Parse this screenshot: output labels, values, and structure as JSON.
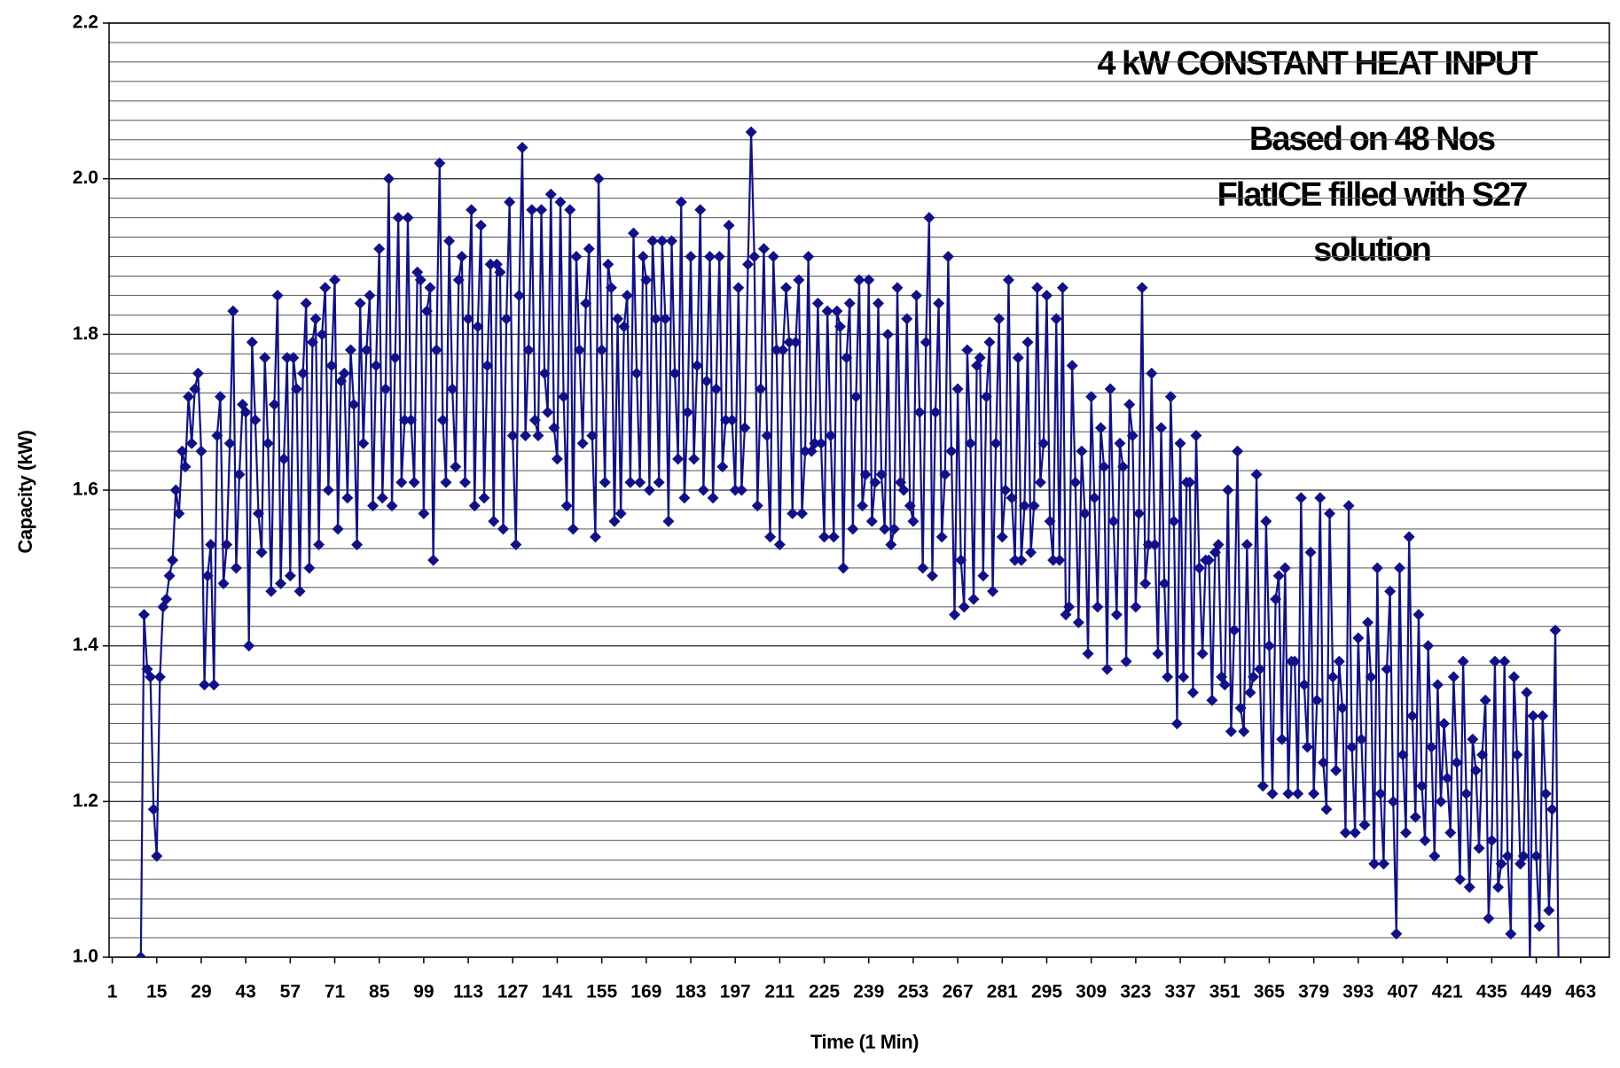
{
  "chart_data": {
    "type": "line",
    "annotations": [
      "4 kW CONSTANT HEAT INPUT",
      "Based on 48 Nos",
      "FlatICE filled with S27",
      "solution"
    ],
    "x_label": "Time (1 Min)",
    "y_label": "Capacity (kW)",
    "xlim": [
      0,
      472
    ],
    "xticks": [
      1,
      15,
      29,
      43,
      57,
      71,
      85,
      99,
      113,
      127,
      141,
      155,
      169,
      183,
      197,
      211,
      225,
      239,
      253,
      267,
      281,
      295,
      309,
      323,
      337,
      351,
      365,
      379,
      393,
      407,
      421,
      435,
      449,
      463
    ],
    "ylim": [
      1,
      2.2
    ],
    "yticks": [
      {
        "value": 1,
        "label": "1.0"
      },
      1.2,
      1.4,
      1.6,
      1.8,
      {
        "value": 2,
        "label": "2.0"
      },
      2.2
    ],
    "y_minor_ticks": [
      1.025,
      1.05,
      1.075,
      1.1,
      1.125,
      1.15,
      1.175,
      1.225,
      1.25,
      1.275,
      1.3,
      1.325,
      1.35,
      1.375,
      1.425,
      1.45,
      1.475,
      1.5,
      1.525,
      1.55,
      1.575,
      1.625,
      1.65,
      1.675,
      1.7,
      1.725,
      1.75,
      1.775,
      1.825,
      1.85,
      1.875,
      1.9,
      1.925,
      1.95,
      1.975,
      2.025,
      2.05,
      2.075,
      2.1,
      2.125,
      2.15,
      2.175
    ],
    "grid": true,
    "series": [
      {
        "color": "#10108a",
        "x": [
          10,
          11,
          12,
          13,
          14,
          15,
          16,
          17,
          18,
          19,
          20,
          21,
          22,
          23,
          24,
          25,
          26,
          27,
          28,
          29,
          30,
          31,
          32,
          33,
          34,
          35,
          36,
          37,
          38,
          39,
          40,
          41,
          42,
          43,
          44,
          45,
          46,
          47,
          48,
          49,
          50,
          51,
          52,
          53,
          54,
          55,
          56,
          57,
          58,
          59,
          60,
          61,
          62,
          63,
          64,
          65,
          66,
          67,
          68,
          69,
          70,
          71,
          72,
          73,
          74,
          75,
          76,
          77,
          78,
          79,
          80,
          81,
          82,
          83,
          84,
          85,
          86,
          87,
          88,
          89,
          90,
          91,
          92,
          93,
          94,
          95,
          96,
          97,
          98,
          99,
          100,
          101,
          102,
          103,
          104,
          105,
          106,
          107,
          108,
          109,
          110,
          111,
          112,
          113,
          114,
          115,
          116,
          117,
          118,
          119,
          120,
          121,
          122,
          123,
          124,
          125,
          126,
          127,
          128,
          129,
          130,
          131,
          132,
          133,
          134,
          135,
          136,
          137,
          138,
          139,
          140,
          141,
          142,
          143,
          144,
          145,
          146,
          147,
          148,
          149,
          150,
          151,
          152,
          153,
          154,
          155,
          156,
          157,
          158,
          159,
          160,
          161,
          162,
          163,
          164,
          165,
          166,
          167,
          168,
          169,
          170,
          171,
          172,
          173,
          174,
          175,
          176,
          177,
          178,
          179,
          180,
          181,
          182,
          183,
          184,
          185,
          186,
          187,
          188,
          189,
          190,
          191,
          192,
          193,
          194,
          195,
          196,
          197,
          198,
          199,
          200,
          201,
          202,
          203,
          204,
          205,
          206,
          207,
          208,
          209,
          210,
          211,
          212,
          213,
          214,
          215,
          216,
          217,
          218,
          219,
          220,
          221,
          222,
          223,
          224,
          225,
          226,
          227,
          228,
          229,
          230,
          231,
          232,
          233,
          234,
          235,
          236,
          237,
          238,
          239,
          240,
          241,
          242,
          243,
          244,
          245,
          246,
          247,
          248,
          249,
          250,
          251,
          252,
          253,
          254,
          255,
          256,
          257,
          258,
          259,
          260,
          261,
          262,
          263,
          264,
          265,
          266,
          267,
          268,
          269,
          270,
          271,
          272,
          273,
          274,
          275,
          276,
          277,
          278,
          279,
          280,
          281,
          282,
          283,
          284,
          285,
          286,
          287,
          288,
          289,
          290,
          291,
          292,
          293,
          294,
          295,
          296,
          297,
          298,
          299,
          300,
          301,
          302,
          303,
          304,
          305,
          306,
          307,
          308,
          309,
          310,
          311,
          312,
          313,
          314,
          315,
          316,
          317,
          318,
          319,
          320,
          321,
          322,
          323,
          324,
          325,
          326,
          327,
          328,
          329,
          330,
          331,
          332,
          333,
          334,
          335,
          336,
          337,
          338,
          339,
          340,
          341,
          342,
          343,
          344,
          345,
          346,
          347,
          348,
          349,
          350,
          351,
          352,
          353,
          354,
          355,
          356,
          357,
          358,
          359,
          360,
          361,
          362,
          363,
          364,
          365,
          366,
          367,
          368,
          369,
          370,
          371,
          372,
          373,
          374,
          375,
          376,
          377,
          378,
          379,
          380,
          381,
          382,
          383,
          384,
          385,
          386,
          387,
          388,
          389,
          390,
          391,
          392,
          393,
          394,
          395,
          396,
          397,
          398,
          399,
          400,
          401,
          402,
          403,
          404,
          405,
          406,
          407,
          408,
          409,
          410,
          411,
          412,
          413,
          414,
          415,
          416,
          417,
          418,
          419,
          420,
          421,
          422,
          423,
          424,
          425,
          426,
          427,
          428,
          429,
          430,
          431,
          432,
          433,
          434,
          435,
          436,
          437,
          438,
          439,
          440,
          441,
          442,
          443,
          444,
          445,
          446,
          447,
          448,
          449,
          450,
          451,
          452,
          453,
          454,
          455,
          456
        ],
        "values": [
          1.0,
          1.44,
          1.37,
          1.36,
          1.19,
          1.13,
          1.36,
          1.45,
          1.46,
          1.49,
          1.51,
          1.6,
          1.57,
          1.65,
          1.63,
          1.72,
          1.66,
          1.73,
          1.75,
          1.65,
          1.35,
          1.49,
          1.53,
          1.35,
          1.67,
          1.72,
          1.48,
          1.53,
          1.66,
          1.83,
          1.5,
          1.62,
          1.71,
          1.7,
          1.4,
          1.79,
          1.69,
          1.57,
          1.52,
          1.77,
          1.66,
          1.47,
          1.71,
          1.85,
          1.48,
          1.64,
          1.77,
          1.49,
          1.77,
          1.73,
          1.47,
          1.75,
          1.84,
          1.5,
          1.79,
          1.82,
          1.53,
          1.8,
          1.86,
          1.6,
          1.76,
          1.87,
          1.55,
          1.74,
          1.75,
          1.59,
          1.78,
          1.71,
          1.53,
          1.84,
          1.66,
          1.78,
          1.85,
          1.58,
          1.76,
          1.91,
          1.59,
          1.73,
          2.0,
          1.58,
          1.77,
          1.95,
          1.61,
          1.69,
          1.95,
          1.69,
          1.61,
          1.88,
          1.87,
          1.57,
          1.83,
          1.86,
          1.51,
          1.78,
          2.02,
          1.69,
          1.61,
          1.92,
          1.73,
          1.63,
          1.87,
          1.9,
          1.61,
          1.82,
          1.96,
          1.58,
          1.81,
          1.94,
          1.59,
          1.76,
          1.89,
          1.56,
          1.89,
          1.88,
          1.55,
          1.82,
          1.97,
          1.67,
          1.53,
          1.85,
          2.04,
          1.67,
          1.78,
          1.96,
          1.69,
          1.67,
          1.96,
          1.75,
          1.7,
          1.98,
          1.68,
          1.64,
          1.97,
          1.72,
          1.58,
          1.96,
          1.55,
          1.9,
          1.78,
          1.66,
          1.84,
          1.91,
          1.67,
          1.54,
          2.0,
          1.78,
          1.61,
          1.89,
          1.86,
          1.56,
          1.82,
          1.57,
          1.81,
          1.85,
          1.61,
          1.93,
          1.75,
          1.61,
          1.9,
          1.87,
          1.6,
          1.92,
          1.82,
          1.61,
          1.92,
          1.82,
          1.56,
          1.92,
          1.75,
          1.64,
          1.97,
          1.59,
          1.7,
          1.9,
          1.64,
          1.76,
          1.96,
          1.6,
          1.74,
          1.9,
          1.59,
          1.73,
          1.9,
          1.63,
          1.69,
          1.94,
          1.69,
          1.6,
          1.86,
          1.6,
          1.68,
          1.89,
          2.06,
          1.9,
          1.58,
          1.73,
          1.91,
          1.67,
          1.54,
          1.9,
          1.78,
          1.53,
          1.78,
          1.86,
          1.79,
          1.57,
          1.79,
          1.87,
          1.57,
          1.65,
          1.9,
          1.65,
          1.66,
          1.84,
          1.66,
          1.54,
          1.83,
          1.67,
          1.54,
          1.83,
          1.81,
          1.5,
          1.77,
          1.84,
          1.55,
          1.72,
          1.87,
          1.58,
          1.62,
          1.87,
          1.56,
          1.61,
          1.84,
          1.62,
          1.55,
          1.8,
          1.53,
          1.55,
          1.86,
          1.61,
          1.6,
          1.82,
          1.58,
          1.56,
          1.85,
          1.7,
          1.5,
          1.79,
          1.95,
          1.49,
          1.7,
          1.84,
          1.54,
          1.62,
          1.9,
          1.65,
          1.44,
          1.73,
          1.51,
          1.45,
          1.78,
          1.66,
          1.46,
          1.76,
          1.77,
          1.49,
          1.72,
          1.79,
          1.47,
          1.66,
          1.82,
          1.54,
          1.6,
          1.87,
          1.59,
          1.51,
          1.77,
          1.51,
          1.58,
          1.79,
          1.52,
          1.58,
          1.86,
          1.61,
          1.66,
          1.85,
          1.56,
          1.51,
          1.82,
          1.51,
          1.86,
          1.44,
          1.45,
          1.76,
          1.61,
          1.43,
          1.65,
          1.57,
          1.39,
          1.72,
          1.59,
          1.45,
          1.68,
          1.63,
          1.37,
          1.73,
          1.56,
          1.44,
          1.66,
          1.63,
          1.38,
          1.71,
          1.67,
          1.45,
          1.57,
          1.86,
          1.48,
          1.53,
          1.75,
          1.53,
          1.39,
          1.68,
          1.48,
          1.36,
          1.72,
          1.56,
          1.3,
          1.66,
          1.36,
          1.61,
          1.61,
          1.34,
          1.67,
          1.5,
          1.39,
          1.51,
          1.51,
          1.33,
          1.52,
          1.53,
          1.36,
          1.35,
          1.6,
          1.29,
          1.42,
          1.65,
          1.32,
          1.29,
          1.53,
          1.34,
          1.36,
          1.62,
          1.37,
          1.22,
          1.56,
          1.4,
          1.21,
          1.46,
          1.49,
          1.28,
          1.5,
          1.21,
          1.38,
          1.38,
          1.21,
          1.59,
          1.35,
          1.27,
          1.52,
          1.21,
          1.33,
          1.59,
          1.25,
          1.19,
          1.57,
          1.36,
          1.24,
          1.38,
          1.32,
          1.16,
          1.58,
          1.27,
          1.16,
          1.41,
          1.28,
          1.17,
          1.43,
          1.36,
          1.12,
          1.5,
          1.21,
          1.12,
          1.37,
          1.47,
          1.2,
          1.03,
          1.5,
          1.26,
          1.16,
          1.54,
          1.31,
          1.18,
          1.44,
          1.22,
          1.15,
          1.4,
          1.27,
          1.13,
          1.35,
          1.2,
          1.3,
          1.23,
          1.16,
          1.36,
          1.25,
          1.1,
          1.38,
          1.21,
          1.09,
          1.28,
          1.24,
          1.14,
          1.26,
          1.33,
          1.05,
          1.15,
          1.38,
          1.09,
          1.12,
          1.38,
          1.13,
          1.03,
          1.36,
          1.26,
          1.12,
          1.13,
          1.34,
          0.99,
          1.31,
          1.13,
          1.04,
          1.31,
          1.21,
          1.06,
          1.19,
          1.42,
          0.99
        ]
      }
    ]
  }
}
